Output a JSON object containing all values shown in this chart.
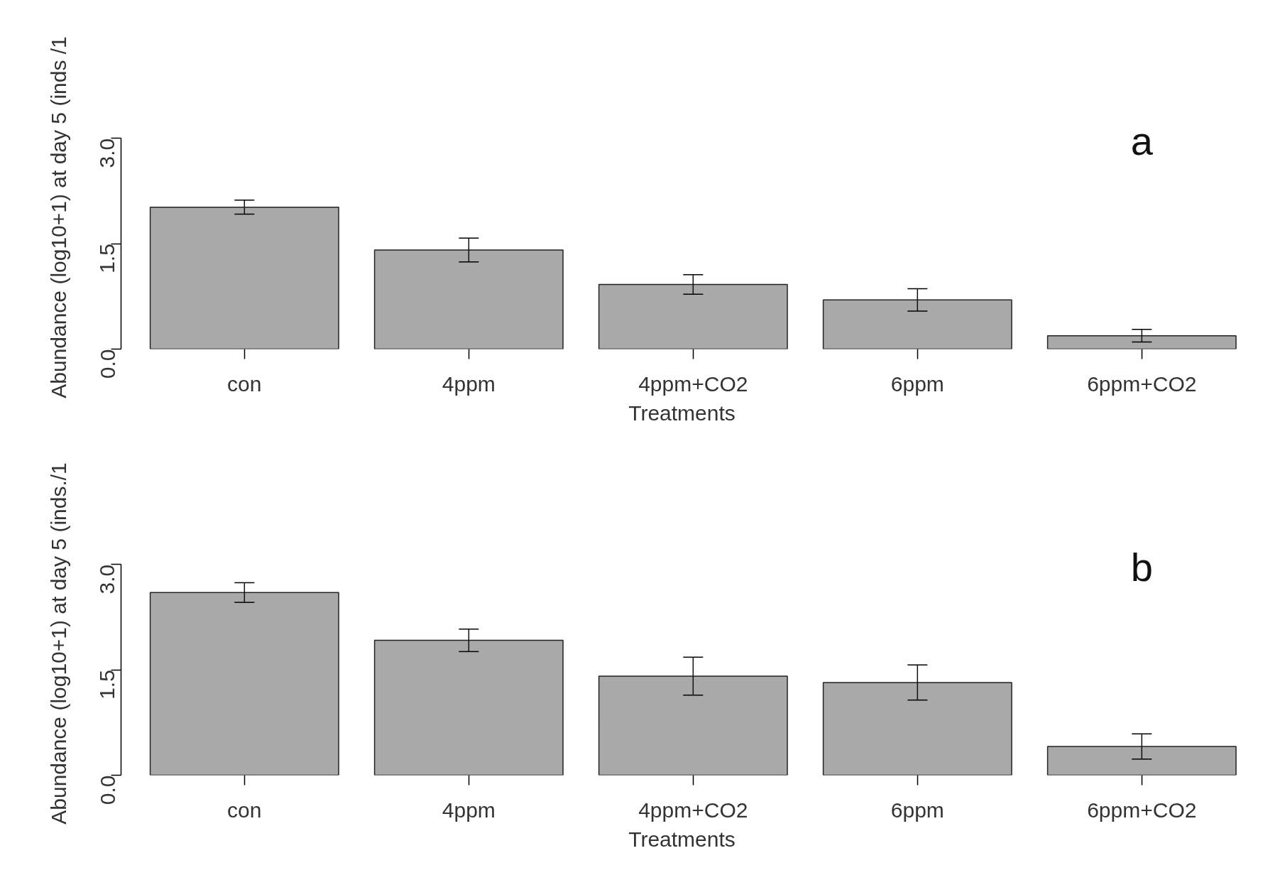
{
  "chart_data": [
    {
      "type": "bar",
      "categories": [
        "con",
        "4ppm",
        "4ppm+CO2",
        "6ppm",
        "6ppm+CO2"
      ],
      "values": [
        2.02,
        1.41,
        0.92,
        0.7,
        0.19
      ],
      "errors": [
        0.1,
        0.17,
        0.14,
        0.16,
        0.09
      ],
      "color": "#a9a9a9",
      "xlabel": "Treatments",
      "ylabel": "Abundance (log10+1) at day 5 (inds /1",
      "ylim": [
        0,
        3
      ],
      "yticks": [
        {
          "value": 0,
          "label": "0.0"
        },
        {
          "value": 1.5,
          "label": "1.5"
        },
        {
          "value": 3,
          "label": "3.0"
        }
      ],
      "annotations": [
        "a"
      ]
    },
    {
      "type": "bar",
      "categories": [
        "con",
        "4ppm",
        "4ppm+CO2",
        "6ppm",
        "6ppm+CO2"
      ],
      "values": [
        2.6,
        1.92,
        1.41,
        1.32,
        0.41
      ],
      "errors": [
        0.14,
        0.16,
        0.27,
        0.25,
        0.18
      ],
      "color": "#a9a9a9",
      "xlabel": "Treatments",
      "ylabel": "Abundance (log10+1) at day 5 (inds./1",
      "ylim": [
        0,
        3
      ],
      "yticks": [
        {
          "value": 0,
          "label": "0.0"
        },
        {
          "value": 1.5,
          "label": "1.5"
        },
        {
          "value": 3,
          "label": "3.0"
        }
      ],
      "annotations": [
        "b"
      ]
    }
  ]
}
